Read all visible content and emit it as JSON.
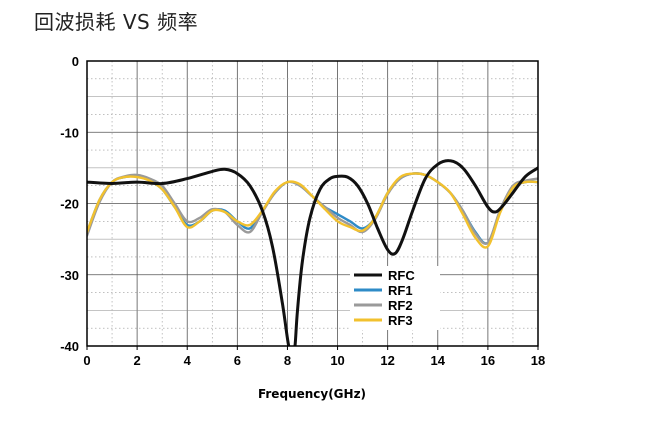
{
  "chart_data": {
    "type": "line",
    "title": "回波损耗 VS 频率",
    "xlabel": "Frequency(GHz)",
    "ylabel": "",
    "xlim": [
      0,
      18
    ],
    "ylim": [
      -40,
      0
    ],
    "x_ticks": [
      "0",
      "2",
      "4",
      "6",
      "8",
      "10",
      "12",
      "14",
      "16",
      "18"
    ],
    "y_ticks": [
      "0",
      "-10",
      "-20",
      "-30",
      "-40"
    ],
    "grid": true,
    "legend_position": "lower-center",
    "series": [
      {
        "name": "RFC",
        "color": "#111111",
        "x": [
          0,
          1,
          2,
          3,
          4,
          5,
          5.5,
          6,
          6.5,
          7,
          7.4,
          7.8,
          8.05,
          8.2,
          8.3,
          8.4,
          8.6,
          8.9,
          9.3,
          9.7,
          10,
          10.4,
          10.8,
          11.2,
          11.6,
          12,
          12.3,
          12.6,
          13,
          13.5,
          14,
          14.5,
          15,
          15.5,
          16,
          16.3,
          16.6,
          17,
          17.5,
          18
        ],
        "y": [
          -17,
          -17.2,
          -17,
          -17.2,
          -16.5,
          -15.5,
          -15.2,
          -15.8,
          -17.5,
          -21,
          -26,
          -34,
          -40,
          -41,
          -40,
          -35,
          -28,
          -22,
          -18,
          -16.5,
          -16.2,
          -16.3,
          -17.5,
          -20,
          -23.5,
          -26.5,
          -27,
          -25,
          -21,
          -16.5,
          -14.5,
          -14,
          -15,
          -17.5,
          -20.5,
          -21.2,
          -20.3,
          -18.5,
          -16.2,
          -15
        ]
      },
      {
        "name": "RF1",
        "color": "#2e8bc7",
        "x": [
          0,
          0.5,
          1,
          1.5,
          2,
          2.5,
          3,
          3.5,
          4,
          4.5,
          5,
          5.5,
          6,
          6.5,
          7,
          7.5,
          8,
          8.5,
          9,
          9.5,
          10,
          10.5,
          11,
          11.5,
          12,
          12.5,
          13,
          13.5,
          14,
          14.5,
          15,
          15.5,
          16,
          16.5,
          17,
          17.5,
          18
        ],
        "y": [
          -24,
          -19.5,
          -17,
          -16.3,
          -16.2,
          -16.8,
          -18,
          -20.5,
          -23,
          -22.5,
          -21,
          -21,
          -22.5,
          -23.5,
          -21,
          -18.5,
          -17,
          -17.5,
          -19,
          -20.5,
          -21.5,
          -22.5,
          -23.5,
          -22,
          -18.5,
          -16.5,
          -15.8,
          -16,
          -17,
          -18.5,
          -21,
          -24,
          -25.5,
          -21,
          -17.8,
          -17,
          -17
        ]
      },
      {
        "name": "RF2",
        "color": "#9a9a9a",
        "x": [
          0,
          0.5,
          1,
          1.5,
          2,
          2.5,
          3,
          3.5,
          4,
          4.5,
          5,
          5.5,
          6,
          6.5,
          7,
          7.5,
          8,
          8.5,
          9,
          9.5,
          10,
          10.5,
          11,
          11.5,
          12,
          12.5,
          13,
          13.5,
          14,
          14.5,
          15,
          15.5,
          16,
          16.5,
          17,
          17.5,
          18
        ],
        "y": [
          -24.5,
          -19.8,
          -17,
          -16.2,
          -16,
          -16.5,
          -17.5,
          -20,
          -22.5,
          -22,
          -20.8,
          -21.2,
          -23,
          -24,
          -21.2,
          -18.5,
          -17,
          -17.5,
          -19,
          -20.5,
          -22,
          -23,
          -24,
          -22.2,
          -18.7,
          -16.5,
          -15.8,
          -16,
          -17,
          -18.5,
          -21,
          -24.2,
          -25.5,
          -20.8,
          -17.5,
          -16.8,
          -16.5
        ]
      },
      {
        "name": "RF3",
        "color": "#f2c12e",
        "x": [
          0,
          0.5,
          1,
          1.5,
          2,
          2.5,
          3,
          3.5,
          4,
          4.5,
          5,
          5.5,
          6,
          6.5,
          7,
          7.5,
          8,
          8.5,
          9,
          9.5,
          10,
          10.5,
          11,
          11.5,
          12,
          12.5,
          13,
          13.5,
          14,
          14.5,
          15,
          15.5,
          16,
          16.5,
          17,
          17.5,
          18
        ],
        "y": [
          -24,
          -19.5,
          -17,
          -16.3,
          -16.3,
          -16.8,
          -18,
          -20.5,
          -23.3,
          -22.5,
          -21,
          -21.2,
          -22.5,
          -23,
          -21,
          -18.3,
          -17,
          -17.3,
          -19,
          -20.8,
          -22.5,
          -23.3,
          -23.8,
          -22,
          -18.5,
          -16.3,
          -15.8,
          -16,
          -17,
          -18.5,
          -21.5,
          -24.8,
          -26,
          -21.2,
          -17.8,
          -17,
          -17
        ]
      }
    ]
  }
}
